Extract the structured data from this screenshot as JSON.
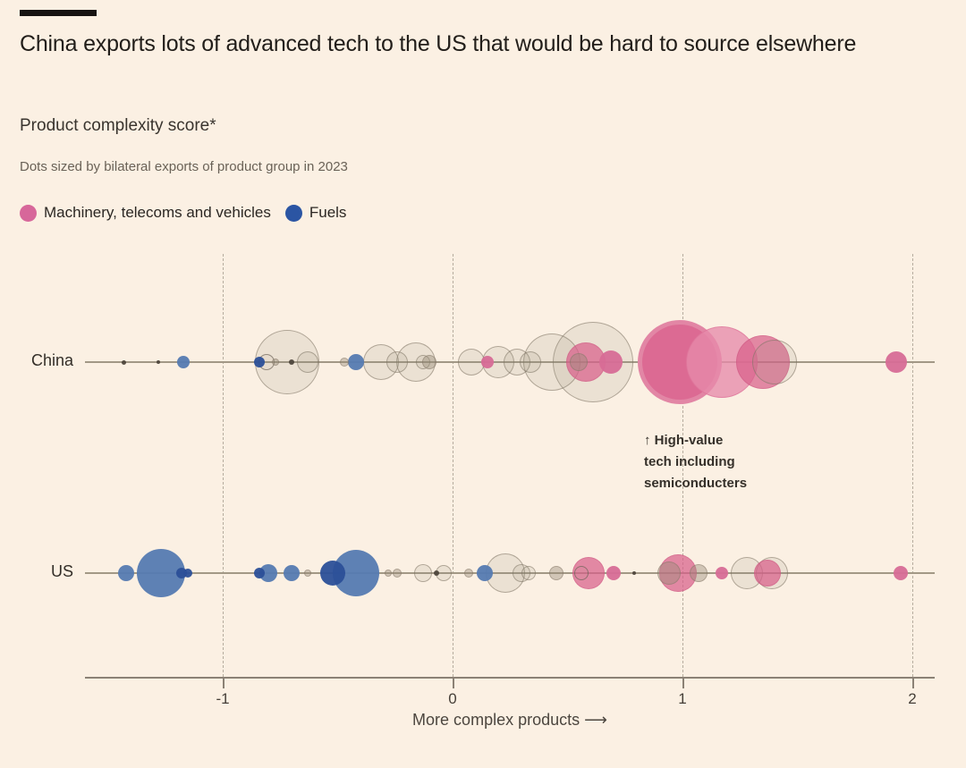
{
  "header": {
    "title": "China exports lots of advanced tech to the US that would be hard to source elsewhere",
    "subtitle": "Product complexity score*",
    "note": "Dots sized by bilateral exports of product group in 2023"
  },
  "legend": [
    {
      "label": "Machinery, telecoms and vehicles",
      "color": "#d7679a"
    },
    {
      "label": "Fuels",
      "color": "#2b55a3"
    }
  ],
  "annotation": {
    "text": "↑ High-value\ntech including\nsemiconducters"
  },
  "palette": {
    "background": "#fbf0e3",
    "pink": "#d7679a",
    "pink_deep": "#dc6a93",
    "blue": "#557ab1",
    "blue_dark": "#2b4f98",
    "gray_bubble": "#968a78"
  },
  "chart_data": {
    "type": "scatter",
    "title": "China exports lots of advanced tech to the US that would be hard to source elsewhere",
    "xlabel": "More complex products ⟶",
    "x_axis": {
      "ticks": [
        -1,
        0,
        1,
        2
      ],
      "range": [
        -1.6,
        2.1
      ],
      "gridlines": "dashed"
    },
    "size_note": "Dots sized by bilateral exports of product group in 2023; r = on-screen radius px",
    "rows": [
      {
        "label": "China",
        "bubbles": [
          {
            "v": -1.43,
            "r": 2.5,
            "s": "dark"
          },
          {
            "v": -1.28,
            "r": 2,
            "s": "dark"
          },
          {
            "v": -1.17,
            "r": 7,
            "s": "blue"
          },
          {
            "v": -0.84,
            "r": 6,
            "s": "blue-dark"
          },
          {
            "v": -0.81,
            "r": 9,
            "s": "gray-ring"
          },
          {
            "v": -0.77,
            "r": 4,
            "s": "gray-fill"
          },
          {
            "v": -0.72,
            "r": 36,
            "s": "gray"
          },
          {
            "v": -0.7,
            "r": 3,
            "s": "dark"
          },
          {
            "v": -0.63,
            "r": 12,
            "s": "gray"
          },
          {
            "v": -0.47,
            "r": 5,
            "s": "gray-fill"
          },
          {
            "v": -0.42,
            "r": 9,
            "s": "blue"
          },
          {
            "v": -0.31,
            "r": 20,
            "s": "gray"
          },
          {
            "v": -0.24,
            "r": 12,
            "s": "gray"
          },
          {
            "v": -0.16,
            "r": 22,
            "s": "gray"
          },
          {
            "v": -0.13,
            "r": 8,
            "s": "gray"
          },
          {
            "v": -0.1,
            "r": 8,
            "s": "gray-fill"
          },
          {
            "v": 0.08,
            "r": 15,
            "s": "gray"
          },
          {
            "v": 0.15,
            "r": 7,
            "s": "pink"
          },
          {
            "v": 0.2,
            "r": 18,
            "s": "gray"
          },
          {
            "v": 0.28,
            "r": 15,
            "s": "gray"
          },
          {
            "v": 0.34,
            "r": 12,
            "s": "gray"
          },
          {
            "v": 0.43,
            "r": 32,
            "s": "gray"
          },
          {
            "v": 0.55,
            "r": 10,
            "s": "gray-fill"
          },
          {
            "v": 0.58,
            "r": 22,
            "s": "pink-med"
          },
          {
            "v": 0.61,
            "r": 45,
            "s": "gray"
          },
          {
            "v": 0.69,
            "r": 13,
            "s": "pink"
          },
          {
            "v": 0.99,
            "r": 47,
            "s": "pink-deep"
          },
          {
            "v": 1.17,
            "r": 40,
            "s": "pink-light"
          },
          {
            "v": 1.35,
            "r": 30,
            "s": "pink-med"
          },
          {
            "v": 1.4,
            "r": 25,
            "s": "gray"
          },
          {
            "v": 1.93,
            "r": 12,
            "s": "pink"
          }
        ]
      },
      {
        "label": "US",
        "bubbles": [
          {
            "v": -1.42,
            "r": 9,
            "s": "blue"
          },
          {
            "v": -1.27,
            "r": 27,
            "s": "blue"
          },
          {
            "v": -1.18,
            "r": 6,
            "s": "blue-dark"
          },
          {
            "v": -1.15,
            "r": 5,
            "s": "blue-dark"
          },
          {
            "v": -0.84,
            "r": 6,
            "s": "blue-dark"
          },
          {
            "v": -0.8,
            "r": 10,
            "s": "blue"
          },
          {
            "v": -0.7,
            "r": 9,
            "s": "blue"
          },
          {
            "v": -0.63,
            "r": 4,
            "s": "gray-fill"
          },
          {
            "v": -0.52,
            "r": 14,
            "s": "blue-dark"
          },
          {
            "v": -0.42,
            "r": 26,
            "s": "blue"
          },
          {
            "v": -0.28,
            "r": 4,
            "s": "gray-fill"
          },
          {
            "v": -0.24,
            "r": 5,
            "s": "gray-fill"
          },
          {
            "v": -0.13,
            "r": 10,
            "s": "gray"
          },
          {
            "v": -0.07,
            "r": 3,
            "s": "dark"
          },
          {
            "v": -0.04,
            "r": 9,
            "s": "gray"
          },
          {
            "v": 0.07,
            "r": 5,
            "s": "gray-fill"
          },
          {
            "v": 0.14,
            "r": 9,
            "s": "blue"
          },
          {
            "v": 0.23,
            "r": 22,
            "s": "gray"
          },
          {
            "v": 0.3,
            "r": 10,
            "s": "gray"
          },
          {
            "v": 0.33,
            "r": 8,
            "s": "gray"
          },
          {
            "v": 0.45,
            "r": 8,
            "s": "gray-fill"
          },
          {
            "v": 0.56,
            "r": 8,
            "s": "gray-ring"
          },
          {
            "v": 0.59,
            "r": 18,
            "s": "pink-med"
          },
          {
            "v": 0.7,
            "r": 8,
            "s": "pink"
          },
          {
            "v": 0.79,
            "r": 2,
            "s": "dark"
          },
          {
            "v": 0.94,
            "r": 13,
            "s": "gray-fill"
          },
          {
            "v": 0.98,
            "r": 21,
            "s": "pink-med"
          },
          {
            "v": 1.07,
            "r": 10,
            "s": "gray-fill"
          },
          {
            "v": 1.17,
            "r": 7,
            "s": "pink"
          },
          {
            "v": 1.28,
            "r": 18,
            "s": "gray"
          },
          {
            "v": 1.37,
            "r": 15,
            "s": "pink-med"
          },
          {
            "v": 1.39,
            "r": 18,
            "s": "gray"
          },
          {
            "v": 1.95,
            "r": 8,
            "s": "pink"
          }
        ]
      }
    ]
  }
}
